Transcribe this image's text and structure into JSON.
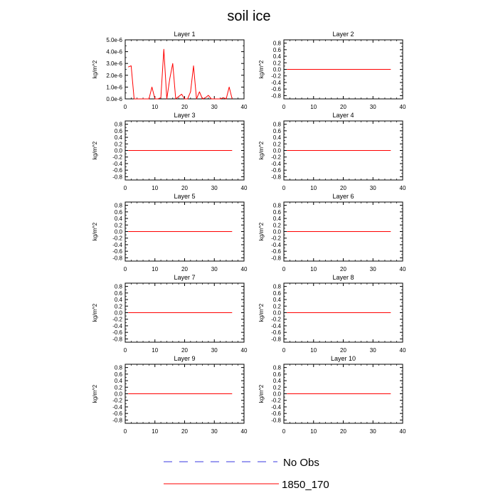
{
  "figure": {
    "title": "soil ice",
    "legend": [
      {
        "label": "No Obs",
        "color": "#3a3ae0",
        "dash": true
      },
      {
        "label": "1850_170",
        "color": "#ff0000",
        "dash": false
      }
    ]
  },
  "chart_data": [
    {
      "type": "line",
      "title": "Layer 1",
      "ylabel": "kg/m^2",
      "xlim": [
        0,
        40
      ],
      "ylim": [
        0,
        5e-06
      ],
      "xticks": [
        0,
        10,
        20,
        30,
        40
      ],
      "xtick_labels": [
        "0",
        "10",
        "20",
        "30",
        "40"
      ],
      "yticks": [
        0,
        1e-06,
        2e-06,
        3e-06,
        4e-06,
        5e-06
      ],
      "ytick_labels": [
        "0.0e-6",
        "1.0e-6",
        "2.0e-6",
        "3.0e-6",
        "4.0e-6",
        "5.0e-6"
      ],
      "series": [
        {
          "name": "1850_170",
          "color": "#ff0000",
          "x": [
            1,
            2,
            3,
            4,
            5,
            6,
            7,
            8,
            9,
            10,
            11,
            12,
            13,
            14,
            15,
            16,
            17,
            18,
            19,
            20,
            21,
            22,
            23,
            24,
            25,
            26,
            27,
            28,
            29,
            30,
            31,
            32,
            33,
            34,
            35,
            36
          ],
          "y": [
            2.7e-06,
            2.8e-06,
            0,
            0,
            0,
            0,
            0,
            0,
            1e-06,
            0,
            0,
            1e-07,
            4.2e-06,
            0,
            1.7e-06,
            3e-06,
            0,
            2e-07,
            4e-07,
            0,
            0,
            6e-07,
            2.8e-06,
            0,
            6e-07,
            0,
            1e-07,
            3e-07,
            0,
            0,
            0,
            0,
            1e-07,
            0,
            1e-06,
            0
          ]
        }
      ]
    },
    {
      "type": "line",
      "title": "Layer 2",
      "ylabel": "kg/m^2",
      "xlim": [
        0,
        40
      ],
      "ylim": [
        -0.9,
        0.9
      ],
      "xticks": [
        0,
        10,
        20,
        30,
        40
      ],
      "xtick_labels": [
        "0",
        "10",
        "20",
        "30",
        "40"
      ],
      "yticks": [
        0.8,
        0.6,
        0.4,
        0.2,
        0,
        -0.2,
        -0.4,
        -0.6,
        -0.8
      ],
      "ytick_labels": [
        "0.8",
        "0.6",
        "0.4",
        "0.2",
        "0.0",
        "-0.2",
        "-0.4",
        "-0.6",
        "-0.8"
      ],
      "series": [
        {
          "name": "1850_170",
          "color": "#ff0000",
          "x": [
            1,
            36
          ],
          "y": [
            0,
            0
          ]
        }
      ]
    },
    {
      "type": "line",
      "title": "Layer 3",
      "ylabel": "kg/m^2",
      "xlim": [
        0,
        40
      ],
      "ylim": [
        -0.9,
        0.9
      ],
      "xticks": [
        0,
        10,
        20,
        30,
        40
      ],
      "xtick_labels": [
        "0",
        "10",
        "20",
        "30",
        "40"
      ],
      "yticks": [
        0.8,
        0.6,
        0.4,
        0.2,
        0,
        -0.2,
        -0.4,
        -0.6,
        -0.8
      ],
      "ytick_labels": [
        "0.8",
        "0.6",
        "0.4",
        "0.2",
        "0.0",
        "-0.2",
        "-0.4",
        "-0.6",
        "-0.8"
      ],
      "series": [
        {
          "name": "1850_170",
          "color": "#ff0000",
          "x": [
            1,
            36
          ],
          "y": [
            0,
            0
          ]
        }
      ]
    },
    {
      "type": "line",
      "title": "Layer 4",
      "ylabel": "kg/m^2",
      "xlim": [
        0,
        40
      ],
      "ylim": [
        -0.9,
        0.9
      ],
      "xticks": [
        0,
        10,
        20,
        30,
        40
      ],
      "xtick_labels": [
        "0",
        "10",
        "20",
        "30",
        "40"
      ],
      "yticks": [
        0.8,
        0.6,
        0.4,
        0.2,
        0,
        -0.2,
        -0.4,
        -0.6,
        -0.8
      ],
      "ytick_labels": [
        "0.8",
        "0.6",
        "0.4",
        "0.2",
        "0.0",
        "-0.2",
        "-0.4",
        "-0.6",
        "-0.8"
      ],
      "series": [
        {
          "name": "1850_170",
          "color": "#ff0000",
          "x": [
            1,
            36
          ],
          "y": [
            0,
            0
          ]
        }
      ]
    },
    {
      "type": "line",
      "title": "Layer 5",
      "ylabel": "kg/m^2",
      "xlim": [
        0,
        40
      ],
      "ylim": [
        -0.9,
        0.9
      ],
      "xticks": [
        0,
        10,
        20,
        30,
        40
      ],
      "xtick_labels": [
        "0",
        "10",
        "20",
        "30",
        "40"
      ],
      "yticks": [
        0.8,
        0.6,
        0.4,
        0.2,
        0,
        -0.2,
        -0.4,
        -0.6,
        -0.8
      ],
      "ytick_labels": [
        "0.8",
        "0.6",
        "0.4",
        "0.2",
        "0.0",
        "-0.2",
        "-0.4",
        "-0.6",
        "-0.8"
      ],
      "series": [
        {
          "name": "1850_170",
          "color": "#ff0000",
          "x": [
            1,
            36
          ],
          "y": [
            0,
            0
          ]
        }
      ]
    },
    {
      "type": "line",
      "title": "Layer 6",
      "ylabel": "kg/m^2",
      "xlim": [
        0,
        40
      ],
      "ylim": [
        -0.9,
        0.9
      ],
      "xticks": [
        0,
        10,
        20,
        30,
        40
      ],
      "xtick_labels": [
        "0",
        "10",
        "20",
        "30",
        "40"
      ],
      "yticks": [
        0.8,
        0.6,
        0.4,
        0.2,
        0,
        -0.2,
        -0.4,
        -0.6,
        -0.8
      ],
      "ytick_labels": [
        "0.8",
        "0.6",
        "0.4",
        "0.2",
        "0.0",
        "-0.2",
        "-0.4",
        "-0.6",
        "-0.8"
      ],
      "series": [
        {
          "name": "1850_170",
          "color": "#ff0000",
          "x": [
            1,
            36
          ],
          "y": [
            0,
            0
          ]
        }
      ]
    },
    {
      "type": "line",
      "title": "Layer 7",
      "ylabel": "kg/m^2",
      "xlim": [
        0,
        40
      ],
      "ylim": [
        -0.9,
        0.9
      ],
      "xticks": [
        0,
        10,
        20,
        30,
        40
      ],
      "xtick_labels": [
        "0",
        "10",
        "20",
        "30",
        "40"
      ],
      "yticks": [
        0.8,
        0.6,
        0.4,
        0.2,
        0,
        -0.2,
        -0.4,
        -0.6,
        -0.8
      ],
      "ytick_labels": [
        "0.8",
        "0.6",
        "0.4",
        "0.2",
        "0.0",
        "-0.2",
        "-0.4",
        "-0.6",
        "-0.8"
      ],
      "series": [
        {
          "name": "1850_170",
          "color": "#ff0000",
          "x": [
            1,
            36
          ],
          "y": [
            0,
            0
          ]
        }
      ]
    },
    {
      "type": "line",
      "title": "Layer 8",
      "ylabel": "kg/m^2",
      "xlim": [
        0,
        40
      ],
      "ylim": [
        -0.9,
        0.9
      ],
      "xticks": [
        0,
        10,
        20,
        30,
        40
      ],
      "xtick_labels": [
        "0",
        "10",
        "20",
        "30",
        "40"
      ],
      "yticks": [
        0.8,
        0.6,
        0.4,
        0.2,
        0,
        -0.2,
        -0.4,
        -0.6,
        -0.8
      ],
      "ytick_labels": [
        "0.8",
        "0.6",
        "0.4",
        "0.2",
        "0.0",
        "-0.2",
        "-0.4",
        "-0.6",
        "-0.8"
      ],
      "series": [
        {
          "name": "1850_170",
          "color": "#ff0000",
          "x": [
            1,
            36
          ],
          "y": [
            0,
            0
          ]
        }
      ]
    },
    {
      "type": "line",
      "title": "Layer 9",
      "ylabel": "kg/m^2",
      "xlim": [
        0,
        40
      ],
      "ylim": [
        -0.9,
        0.9
      ],
      "xticks": [
        0,
        10,
        20,
        30,
        40
      ],
      "xtick_labels": [
        "0",
        "10",
        "20",
        "30",
        "40"
      ],
      "yticks": [
        0.8,
        0.6,
        0.4,
        0.2,
        0,
        -0.2,
        -0.4,
        -0.6,
        -0.8
      ],
      "ytick_labels": [
        "0.8",
        "0.6",
        "0.4",
        "0.2",
        "0.0",
        "-0.2",
        "-0.4",
        "-0.6",
        "-0.8"
      ],
      "series": [
        {
          "name": "1850_170",
          "color": "#ff0000",
          "x": [
            1,
            36
          ],
          "y": [
            0,
            0
          ]
        }
      ]
    },
    {
      "type": "line",
      "title": "Layer 10",
      "ylabel": "kg/m^2",
      "xlim": [
        0,
        40
      ],
      "ylim": [
        -0.9,
        0.9
      ],
      "xticks": [
        0,
        10,
        20,
        30,
        40
      ],
      "xtick_labels": [
        "0",
        "10",
        "20",
        "30",
        "40"
      ],
      "yticks": [
        0.8,
        0.6,
        0.4,
        0.2,
        0,
        -0.2,
        -0.4,
        -0.6,
        -0.8
      ],
      "ytick_labels": [
        "0.8",
        "0.6",
        "0.4",
        "0.2",
        "0.0",
        "-0.2",
        "-0.4",
        "-0.6",
        "-0.8"
      ],
      "series": [
        {
          "name": "1850_170",
          "color": "#ff0000",
          "x": [
            1,
            36
          ],
          "y": [
            0,
            0
          ]
        }
      ]
    }
  ]
}
